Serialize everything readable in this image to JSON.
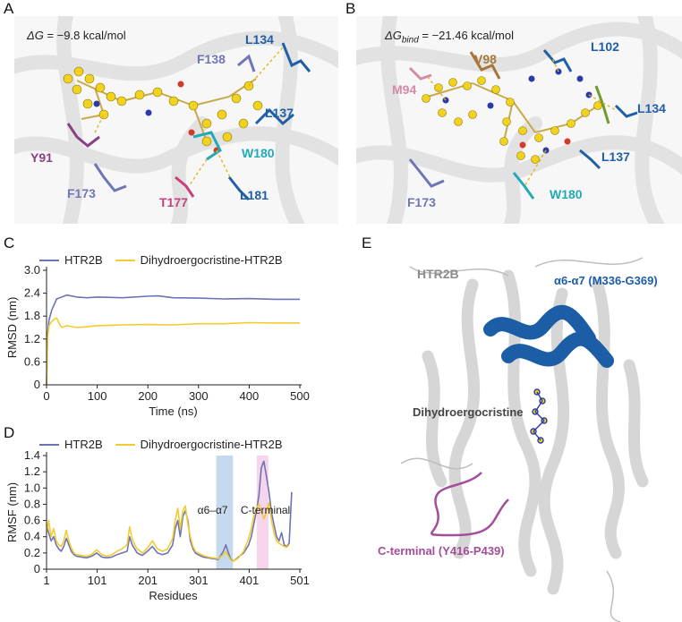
{
  "panels": {
    "A": {
      "letter": "A",
      "energy": {
        "prefix": "ΔG",
        "text": " = −9.8 kcal/mol"
      },
      "residues": [
        {
          "label": "L134",
          "color": "#1f5fa8"
        },
        {
          "label": "F138",
          "color": "#6f76b8"
        },
        {
          "label": "L137",
          "color": "#1f5fa8"
        },
        {
          "label": "Y91",
          "color": "#8a3f86"
        },
        {
          "label": "W180",
          "color": "#23a9b5"
        },
        {
          "label": "F173",
          "color": "#6f76b8"
        },
        {
          "label": "T177",
          "color": "#c8407a"
        },
        {
          "label": "L181",
          "color": "#1f5fa8"
        }
      ]
    },
    "B": {
      "letter": "B",
      "energy": {
        "prefix": "ΔG",
        "sub": "bind",
        "text": " = −21.46 kcal/mol"
      },
      "residues": [
        {
          "label": "V98",
          "color": "#a8763a"
        },
        {
          "label": "L102",
          "color": "#1f5fa8"
        },
        {
          "label": "M94",
          "color": "#d58aa8"
        },
        {
          "label": "L134",
          "color": "#1f5fa8"
        },
        {
          "label": "L137",
          "color": "#1f5fa8"
        },
        {
          "label": "F173",
          "color": "#6f76b8"
        },
        {
          "label": "W180",
          "color": "#23a9b5"
        }
      ]
    },
    "C": {
      "letter": "C"
    },
    "D": {
      "letter": "D"
    },
    "E": {
      "letter": "E",
      "labels": {
        "protein": "HTR2B",
        "helix": "α6-α7 (M336-G369)",
        "ligand": "Dihydroergocristine",
        "cterm": "C-terminal (Y416-P439)"
      },
      "colors": {
        "protein": "#8c8c8c",
        "helix": "#1b5ea6",
        "ligand": "#444444",
        "cterm": "#a44d9a"
      }
    }
  },
  "chart_data": [
    {
      "id": "C",
      "type": "line",
      "title": "",
      "xlabel": "Time (ns)",
      "ylabel": "RMSD (nm)",
      "xlim": [
        0,
        500
      ],
      "ylim": [
        0,
        3.0
      ],
      "xticks": [
        0,
        100,
        200,
        300,
        400,
        500
      ],
      "yticks": [
        0,
        0.6,
        1.2,
        1.8,
        2.4,
        3.0
      ],
      "ytick_labels": [
        "0",
        "0.6",
        "1.2",
        "1.8",
        "2.4",
        "3.0"
      ],
      "series": [
        {
          "name": "HTR2B",
          "color": "#6d74b6",
          "x": [
            0,
            2,
            5,
            10,
            15,
            20,
            30,
            40,
            60,
            80,
            100,
            150,
            200,
            220,
            250,
            300,
            350,
            400,
            450,
            500
          ],
          "y": [
            0,
            1.3,
            1.7,
            1.95,
            2.1,
            2.25,
            2.3,
            2.35,
            2.3,
            2.28,
            2.3,
            2.28,
            2.32,
            2.33,
            2.28,
            2.27,
            2.25,
            2.26,
            2.24,
            2.24
          ]
        },
        {
          "name": "Dihydroergocristine-HTR2B",
          "color": "#f2cc2e",
          "x": [
            0,
            2,
            5,
            10,
            15,
            20,
            25,
            30,
            40,
            60,
            80,
            100,
            150,
            200,
            250,
            300,
            350,
            400,
            450,
            500
          ],
          "y": [
            0,
            1.2,
            1.55,
            1.65,
            1.72,
            1.75,
            1.6,
            1.5,
            1.55,
            1.5,
            1.52,
            1.55,
            1.57,
            1.58,
            1.57,
            1.6,
            1.6,
            1.63,
            1.62,
            1.62
          ]
        }
      ]
    },
    {
      "id": "D",
      "type": "line",
      "title": "",
      "xlabel": "Residues",
      "ylabel": "RMSF (nm)",
      "xlim": [
        1,
        501
      ],
      "ylim": [
        0,
        1.4
      ],
      "xticks": [
        1,
        101,
        201,
        301,
        401,
        501
      ],
      "yticks": [
        0,
        0.2,
        0.4,
        0.6,
        0.8,
        1.0,
        1.2,
        1.4
      ],
      "ytick_labels": [
        "0",
        "0.2",
        "0.4",
        "0.6",
        "0.8",
        "1.0",
        "1.2",
        "1.4"
      ],
      "regions": [
        {
          "label": "α6–α7",
          "start": 336,
          "end": 369,
          "color": "#c5d9ef"
        },
        {
          "label": "C-terminal",
          "start": 416,
          "end": 439,
          "color": "#f6d4ec"
        }
      ],
      "series": [
        {
          "name": "HTR2B",
          "color": "#6d74b6",
          "x": [
            1,
            5,
            10,
            15,
            20,
            25,
            30,
            35,
            40,
            45,
            50,
            55,
            60,
            70,
            80,
            90,
            100,
            110,
            120,
            130,
            140,
            150,
            160,
            165,
            170,
            175,
            180,
            190,
            200,
            210,
            220,
            230,
            240,
            250,
            255,
            260,
            265,
            270,
            275,
            280,
            285,
            290,
            295,
            300,
            310,
            320,
            330,
            340,
            350,
            355,
            360,
            365,
            370,
            380,
            390,
            400,
            405,
            410,
            415,
            420,
            425,
            430,
            435,
            440,
            445,
            450,
            455,
            460,
            465,
            470,
            475,
            480,
            485
          ],
          "y": [
            0.55,
            0.45,
            0.35,
            0.4,
            0.3,
            0.25,
            0.22,
            0.28,
            0.38,
            0.3,
            0.22,
            0.18,
            0.16,
            0.15,
            0.14,
            0.16,
            0.2,
            0.15,
            0.14,
            0.15,
            0.18,
            0.2,
            0.22,
            0.4,
            0.3,
            0.25,
            0.2,
            0.17,
            0.22,
            0.28,
            0.2,
            0.18,
            0.2,
            0.3,
            0.5,
            0.6,
            0.4,
            0.65,
            0.72,
            0.6,
            0.35,
            0.25,
            0.2,
            0.18,
            0.15,
            0.14,
            0.13,
            0.12,
            0.22,
            0.3,
            0.2,
            0.12,
            0.1,
            0.15,
            0.2,
            0.3,
            0.4,
            0.55,
            0.7,
            0.9,
            1.25,
            1.33,
            1.15,
            0.95,
            0.7,
            0.55,
            0.4,
            0.35,
            0.45,
            0.3,
            0.28,
            0.32,
            0.95
          ]
        },
        {
          "name": "Dihydroergocristine-HTR2B",
          "color": "#f2cc2e",
          "x": [
            1,
            5,
            10,
            15,
            20,
            25,
            30,
            35,
            40,
            45,
            50,
            55,
            60,
            70,
            80,
            90,
            100,
            110,
            120,
            130,
            140,
            150,
            160,
            165,
            170,
            175,
            180,
            190,
            200,
            210,
            220,
            230,
            240,
            250,
            255,
            260,
            265,
            270,
            275,
            280,
            285,
            290,
            295,
            300,
            310,
            320,
            330,
            340,
            350,
            355,
            360,
            365,
            370,
            380,
            390,
            400,
            405,
            410,
            415,
            420,
            425,
            430,
            435,
            440,
            445,
            450,
            455,
            460,
            465,
            470,
            475,
            480
          ],
          "y": [
            0.45,
            0.6,
            0.4,
            0.5,
            0.35,
            0.3,
            0.28,
            0.35,
            0.48,
            0.35,
            0.26,
            0.2,
            0.18,
            0.17,
            0.16,
            0.18,
            0.24,
            0.18,
            0.16,
            0.18,
            0.22,
            0.25,
            0.3,
            0.52,
            0.38,
            0.3,
            0.25,
            0.2,
            0.26,
            0.35,
            0.25,
            0.22,
            0.25,
            0.38,
            0.6,
            0.75,
            0.5,
            0.72,
            0.78,
            0.55,
            0.4,
            0.28,
            0.22,
            0.2,
            0.17,
            0.15,
            0.14,
            0.13,
            0.18,
            0.22,
            0.16,
            0.11,
            0.1,
            0.14,
            0.22,
            0.38,
            0.5,
            0.65,
            0.75,
            0.8,
            0.72,
            0.62,
            0.7,
            0.82,
            0.6,
            0.45,
            0.35,
            0.32,
            0.3,
            0.28,
            0.27,
            0.3
          ]
        }
      ]
    }
  ]
}
